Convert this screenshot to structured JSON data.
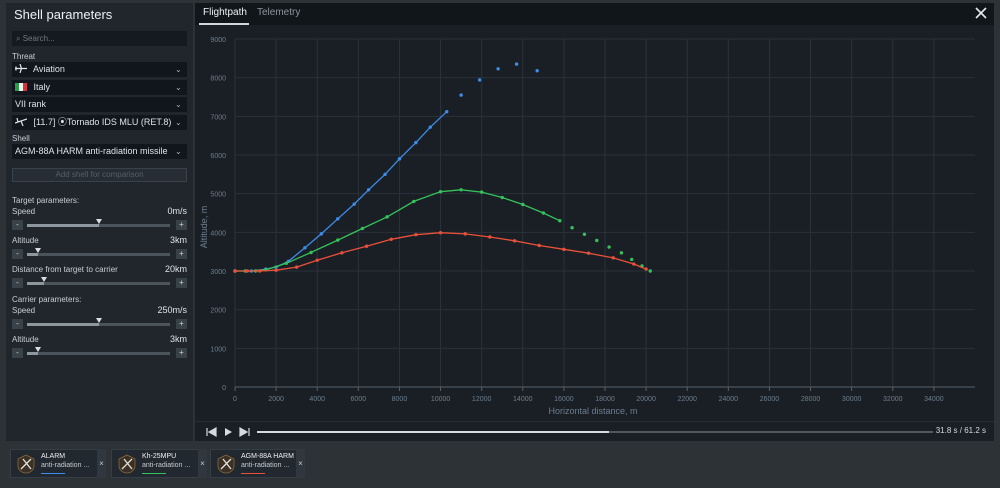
{
  "panel": {
    "title": "Shell parameters",
    "search_placeholder": "Search...",
    "threat_label": "Threat",
    "threat": "Aviation",
    "country": "Italy",
    "rank": "VII rank",
    "vehicle": "[11.7] ⦿Tornado IDS MLU (RET.8)",
    "shell_label": "Shell",
    "shell": "AGM-88A HARM anti-radiation missile",
    "add_shell": "Add shell for comparison",
    "target_params_label": "Target parameters:",
    "target_speed_label": "Speed",
    "target_speed_value": "0m/s",
    "target_speed_level": 0.5,
    "target_altitude_label": "Altitude",
    "target_altitude_value": "3km",
    "target_altitude_level": 0.08,
    "distance_label": "Distance from target to carrier",
    "distance_value": "20km",
    "distance_level": 0.12,
    "carrier_params_label": "Carrier parameters:",
    "carrier_speed_label": "Speed",
    "carrier_speed_value": "250m/s",
    "carrier_speed_level": 0.5,
    "carrier_altitude_label": "Altitude",
    "carrier_altitude_value": "3km",
    "carrier_altitude_level": 0.08,
    "minus": "-",
    "plus": "+"
  },
  "tabs": {
    "flightpath": "Flightpath",
    "telemetry": "Telemetry"
  },
  "player": {
    "time": "31.8 s  /  61.2 s",
    "progress": 0.52
  },
  "comparisons": [
    {
      "name": "ALARM",
      "type": "anti-radiation ...",
      "color": "#3d8ce8",
      "icon": "missile-icon",
      "close": "×"
    },
    {
      "name": "Kh-25MPU",
      "type": "anti-radiation ...",
      "color": "#35c25a",
      "icon": "missile-icon",
      "close": "×"
    },
    {
      "name": "AGM-88A HARM",
      "type": "anti-radiation ...",
      "color": "#e8503a",
      "icon": "missile-icon",
      "close": "×"
    }
  ],
  "colors": {
    "accent": "#d2d7dc",
    "blue": "#3d8ce8",
    "green": "#35c25a",
    "red": "#e8503a"
  },
  "chart_data": {
    "type": "line",
    "xlabel": "Horizontal distance, m",
    "ylabel": "Altitude, m",
    "xlim": [
      0,
      36000
    ],
    "ylim": [
      0,
      9000
    ],
    "xticks": [
      0,
      2000,
      4000,
      6000,
      8000,
      10000,
      12000,
      14000,
      16000,
      18000,
      20000,
      22000,
      24000,
      26000,
      28000,
      30000,
      32000,
      34000
    ],
    "yticks": [
      0,
      1000,
      2000,
      3000,
      4000,
      5000,
      6000,
      7000,
      8000,
      9000
    ],
    "grid": true,
    "series": [
      {
        "color": "#3d8ce8",
        "played_until": 10300,
        "points": [
          [
            0,
            3000
          ],
          [
            800,
            3000
          ],
          [
            1500,
            3050
          ],
          [
            2000,
            3100
          ],
          [
            2600,
            3250
          ],
          [
            3400,
            3600
          ],
          [
            4200,
            3960
          ],
          [
            5000,
            4350
          ],
          [
            5800,
            4730
          ],
          [
            6500,
            5100
          ],
          [
            7300,
            5500
          ],
          [
            8000,
            5900
          ],
          [
            8800,
            6320
          ],
          [
            9500,
            6720
          ],
          [
            10300,
            7120
          ],
          [
            11000,
            7550
          ],
          [
            11900,
            7940
          ],
          [
            12800,
            8230
          ],
          [
            13700,
            8350
          ],
          [
            14700,
            8180
          ]
        ]
      },
      {
        "color": "#35c25a",
        "played_until": 15800,
        "points": [
          [
            0,
            3000
          ],
          [
            500,
            3000
          ],
          [
            1000,
            3000
          ],
          [
            1500,
            3030
          ],
          [
            2500,
            3200
          ],
          [
            3700,
            3480
          ],
          [
            5000,
            3800
          ],
          [
            6200,
            4100
          ],
          [
            7400,
            4400
          ],
          [
            8700,
            4800
          ],
          [
            10000,
            5050
          ],
          [
            11000,
            5100
          ],
          [
            12000,
            5040
          ],
          [
            13000,
            4900
          ],
          [
            14000,
            4720
          ],
          [
            15000,
            4500
          ],
          [
            15800,
            4300
          ],
          [
            16400,
            4120
          ],
          [
            17000,
            3950
          ],
          [
            17600,
            3790
          ],
          [
            18200,
            3620
          ],
          [
            18800,
            3470
          ],
          [
            19300,
            3300
          ],
          [
            19800,
            3130
          ],
          [
            20200,
            3000
          ]
        ]
      },
      {
        "color": "#e8503a",
        "played_until": 20000,
        "points": [
          [
            0,
            3000
          ],
          [
            600,
            3000
          ],
          [
            1200,
            3000
          ],
          [
            2000,
            3020
          ],
          [
            3000,
            3100
          ],
          [
            4000,
            3280
          ],
          [
            5200,
            3470
          ],
          [
            6400,
            3640
          ],
          [
            7600,
            3820
          ],
          [
            8800,
            3940
          ],
          [
            10000,
            3990
          ],
          [
            11200,
            3960
          ],
          [
            12400,
            3880
          ],
          [
            13600,
            3780
          ],
          [
            14800,
            3660
          ],
          [
            16000,
            3560
          ],
          [
            17200,
            3460
          ],
          [
            18400,
            3340
          ],
          [
            19400,
            3180
          ],
          [
            20000,
            3050
          ]
        ]
      }
    ]
  }
}
